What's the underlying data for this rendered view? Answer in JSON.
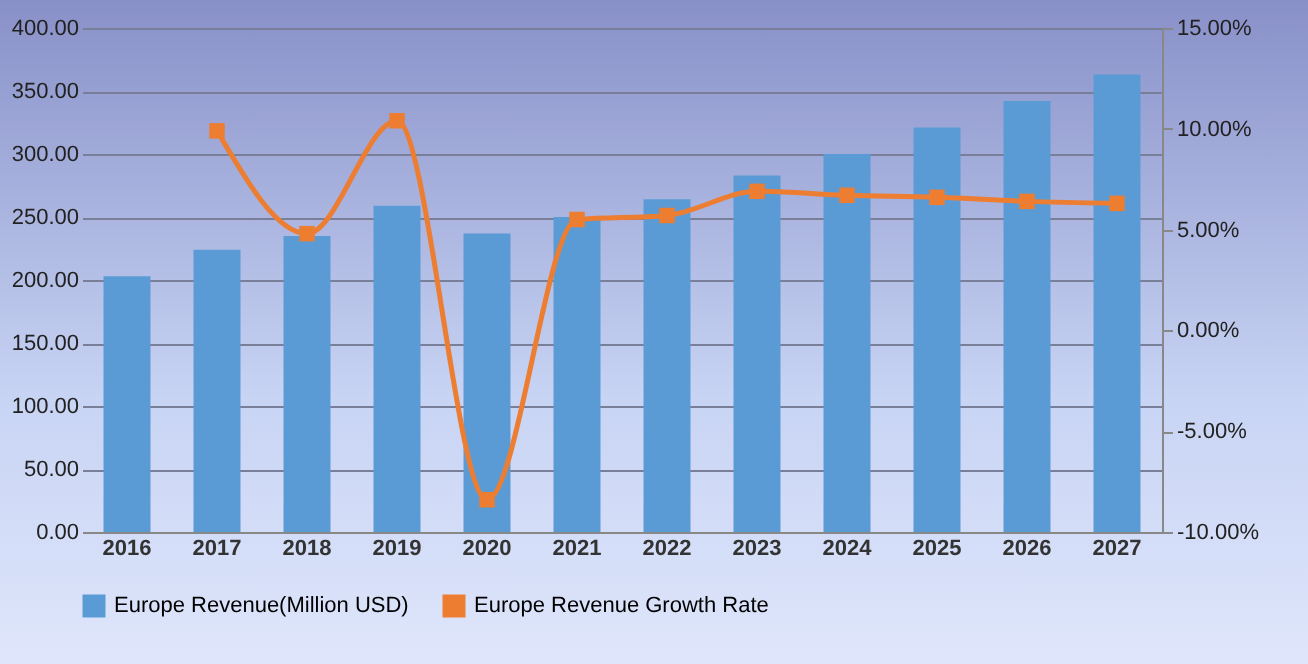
{
  "chart_data": {
    "type": "bar",
    "categories": [
      "2016",
      "2017",
      "2018",
      "2019",
      "2020",
      "2021",
      "2022",
      "2023",
      "2024",
      "2025",
      "2026",
      "2027"
    ],
    "series": [
      {
        "name": "Europe Revenue(Million USD)",
        "color": "#5b9bd5",
        "values": [
          203,
          224,
          235,
          259,
          237,
          250,
          264,
          283,
          300,
          321,
          342,
          363
        ]
      },
      {
        "name": "Europe Revenue Growth Rate",
        "type": "line",
        "axis": "y2",
        "color": "#ed7d31",
        "values": [
          null,
          9.9,
          4.8,
          10.4,
          -8.4,
          5.5,
          5.7,
          6.9,
          6.7,
          6.6,
          6.4,
          6.3
        ]
      }
    ],
    "ylim": [
      0,
      400
    ],
    "yticks": [
      {
        "value": 0,
        "label": "0.00"
      },
      {
        "value": 50,
        "label": "50.00"
      },
      {
        "value": 100,
        "label": "100.00"
      },
      {
        "value": 150,
        "label": "150.00"
      },
      {
        "value": 200,
        "label": "200.00"
      },
      {
        "value": 250,
        "label": "250.00"
      },
      {
        "value": 300,
        "label": "300.00"
      },
      {
        "value": 350,
        "label": "350.00"
      },
      {
        "value": 400,
        "label": "400.00"
      }
    ],
    "y2lim": [
      -10,
      15
    ],
    "y2ticks": [
      {
        "value": -10,
        "label": "-10.00%"
      },
      {
        "value": -5,
        "label": "-5.00%"
      },
      {
        "value": 0,
        "label": "0.00%"
      },
      {
        "value": 5,
        "label": "5.00%"
      },
      {
        "value": 10,
        "label": "10.00%"
      },
      {
        "value": 15,
        "label": "15.00%"
      }
    ],
    "grid": "y",
    "legend": "bottom",
    "marker": "square",
    "line_style": "solid"
  }
}
